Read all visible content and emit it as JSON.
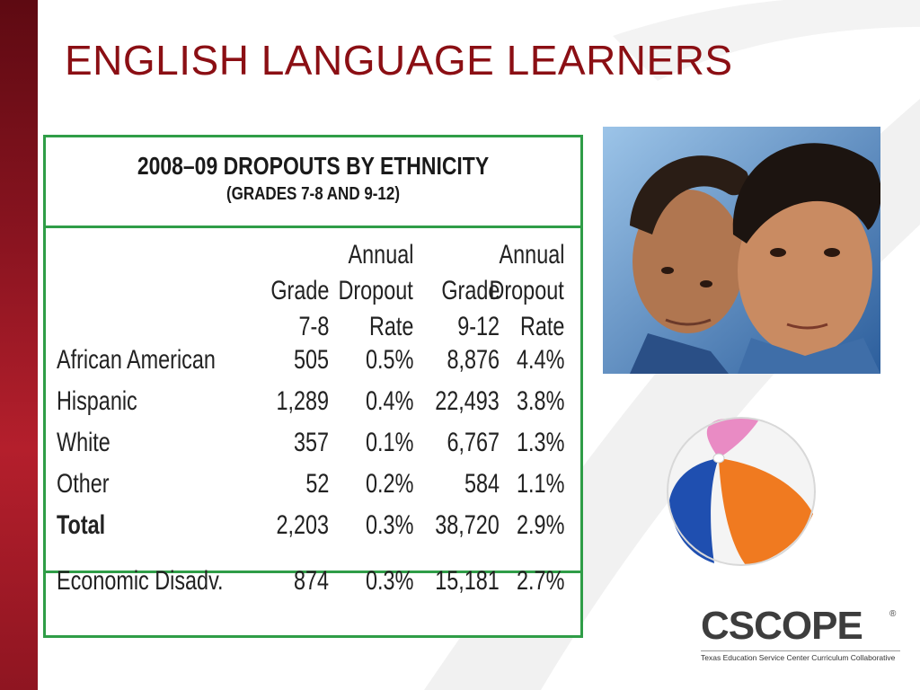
{
  "slide": {
    "title": "ENGLISH LANGUAGE LEARNERS"
  },
  "table": {
    "title": "2008–09 DROPOUTS BY ETHNICITY",
    "subtitle": "(GRADES 7-8 AND 9-12)",
    "header_lines": {
      "line1": [
        "",
        "Annual",
        "",
        "Annual"
      ],
      "line2": [
        "Grade",
        "Dropout",
        "Grade",
        "Dropout"
      ],
      "line3": [
        "7-8",
        "Rate",
        "9-12",
        "Rate"
      ]
    },
    "rows": [
      {
        "label": "African American",
        "g78": "505",
        "rate78": "0.5%",
        "g912": "8,876",
        "rate912": "4.4%"
      },
      {
        "label": "Hispanic",
        "g78": "1,289",
        "rate78": "0.4%",
        "g912": "22,493",
        "rate912": "3.8%"
      },
      {
        "label": "White",
        "g78": "357",
        "rate78": "0.1%",
        "g912": "6,767",
        "rate912": "1.3%"
      },
      {
        "label": "Other",
        "g78": "52",
        "rate78": "0.2%",
        "g912": "584",
        "rate912": "1.1%"
      },
      {
        "label": "Total",
        "g78": "2,203",
        "rate78": "0.3%",
        "g912": "38,720",
        "rate912": "2.9%"
      }
    ],
    "footer_row": {
      "label": "Economic Disadv.",
      "g78": "874",
      "rate78": "0.3%",
      "g912": "15,181",
      "rate912": "2.7%"
    }
  },
  "logo": {
    "name": "CSCOPE",
    "registered": "®",
    "tagline": "Texas Education Service Center Curriculum Collaborative"
  },
  "colors": {
    "title_red": "#8b0f14",
    "table_green": "#2f9d47",
    "left_bar": "#8a1420"
  }
}
